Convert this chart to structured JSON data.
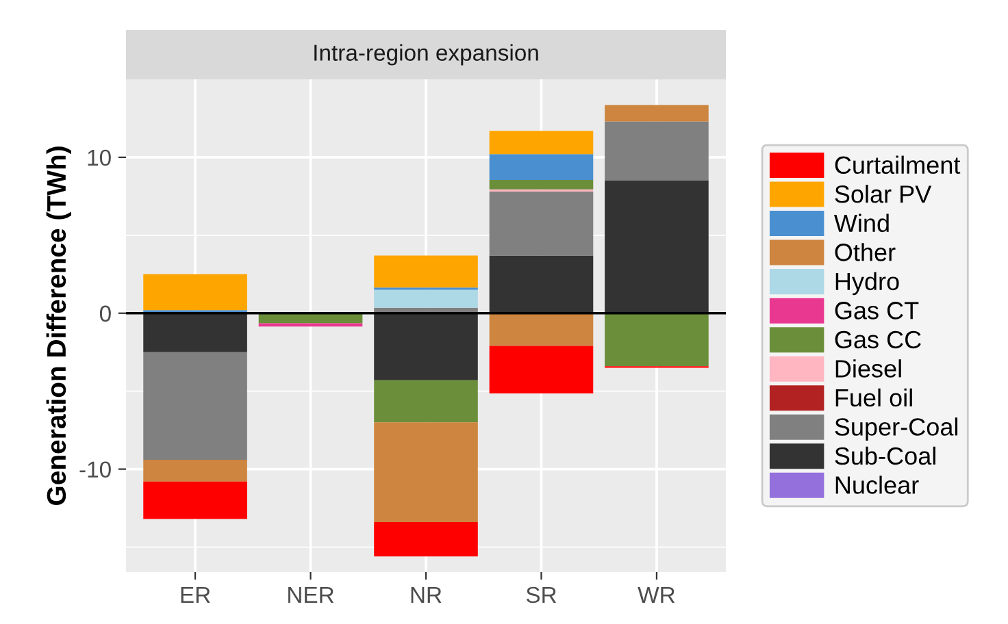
{
  "chart_data": {
    "type": "bar",
    "stacked": true,
    "title": "Intra-region expansion",
    "ylabel": "Generation Difference (TWh)",
    "categories": [
      "ER",
      "NER",
      "NR",
      "SR",
      "WR"
    ],
    "series": [
      {
        "name": "Nuclear",
        "color": "#9370db",
        "values": [
          null,
          null,
          null,
          null,
          null
        ]
      },
      {
        "name": "Sub-Coal",
        "color": "#333333",
        "values": [
          -2.5,
          null,
          -4.3,
          3.7,
          8.5
        ]
      },
      {
        "name": "Super-Coal",
        "color": "#808080",
        "values": [
          -6.9,
          null,
          0.35,
          4.1,
          3.8
        ]
      },
      {
        "name": "Fuel oil",
        "color": "#b22222",
        "values": [
          null,
          null,
          null,
          null,
          null
        ]
      },
      {
        "name": "Diesel",
        "color": "#ffb6c1",
        "values": [
          null,
          null,
          null,
          0.15,
          null
        ]
      },
      {
        "name": "Gas CC",
        "color": "#6b8e3a",
        "values": [
          null,
          -0.65,
          -2.7,
          0.6,
          -3.4
        ]
      },
      {
        "name": "Gas CT",
        "color": "#e8388f",
        "values": [
          null,
          -0.2,
          null,
          null,
          null
        ]
      },
      {
        "name": "Hydro",
        "color": "#add8e6",
        "values": [
          null,
          null,
          1.15,
          null,
          null
        ]
      },
      {
        "name": "Other",
        "color": "#cd853f",
        "values": [
          -1.4,
          null,
          -6.4,
          -2.1,
          1.05
        ]
      },
      {
        "name": "Wind",
        "color": "#4a90d0",
        "values": [
          0.2,
          null,
          0.15,
          1.65,
          null
        ]
      },
      {
        "name": "Solar PV",
        "color": "#ffa500",
        "values": [
          2.3,
          null,
          2.05,
          1.5,
          null
        ]
      },
      {
        "name": "Curtailment",
        "color": "#ff0000",
        "values": [
          -2.4,
          null,
          -2.2,
          -3.05,
          -0.1
        ]
      }
    ],
    "ylim": [
      -16.6,
      15.0
    ],
    "yticks": [
      -10,
      0,
      10
    ],
    "ref_lines": [
      {
        "axis": "y",
        "value": 0,
        "color": "#000000"
      }
    ],
    "grid": true,
    "legend": "right"
  }
}
